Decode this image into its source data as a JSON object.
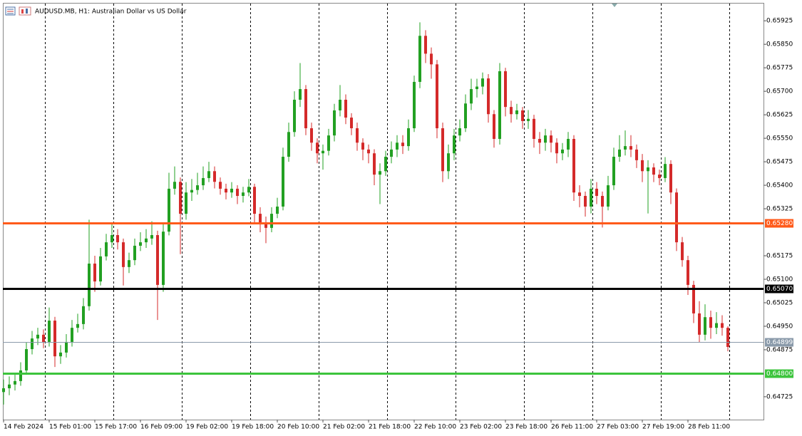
{
  "chart_data": {
    "type": "candlestick",
    "title": "AUDUSD.MB, H1:  Australian Dollar vs US Dollar",
    "up_color": "#22a022",
    "down_color": "#d42a2a",
    "ohlc": [
      [
        0.6474,
        0.6478,
        0.647,
        0.64752
      ],
      [
        0.64752,
        0.6479,
        0.6473,
        0.64764
      ],
      [
        0.64764,
        0.648,
        0.64745,
        0.64775
      ],
      [
        0.64775,
        0.64835,
        0.6476,
        0.64809
      ],
      [
        0.64809,
        0.649,
        0.64795,
        0.64877
      ],
      [
        0.64877,
        0.64935,
        0.6486,
        0.64911
      ],
      [
        0.64911,
        0.64945,
        0.6489,
        0.64923
      ],
      [
        0.64923,
        0.6494,
        0.6488,
        0.649
      ],
      [
        0.649,
        0.6501,
        0.64885,
        0.64968
      ],
      [
        0.64968,
        0.6498,
        0.6482,
        0.64854
      ],
      [
        0.64854,
        0.6489,
        0.6483,
        0.64866
      ],
      [
        0.64866,
        0.64925,
        0.6485,
        0.649
      ],
      [
        0.649,
        0.6497,
        0.64885,
        0.64945
      ],
      [
        0.64945,
        0.6499,
        0.6493,
        0.64957
      ],
      [
        0.64957,
        0.6504,
        0.6494,
        0.65014
      ],
      [
        0.65014,
        0.6529,
        0.65,
        0.6515
      ],
      [
        0.6515,
        0.65175,
        0.6506,
        0.65093
      ],
      [
        0.65093,
        0.652,
        0.6508,
        0.65173
      ],
      [
        0.65173,
        0.65245,
        0.6516,
        0.65218
      ],
      [
        0.65218,
        0.65275,
        0.652,
        0.65241
      ],
      [
        0.65241,
        0.6526,
        0.65195,
        0.65218
      ],
      [
        0.65218,
        0.6523,
        0.6508,
        0.65139
      ],
      [
        0.65139,
        0.65185,
        0.6512,
        0.65161
      ],
      [
        0.65161,
        0.6523,
        0.65145,
        0.65207
      ],
      [
        0.65207,
        0.6525,
        0.6519,
        0.65218
      ],
      [
        0.65218,
        0.6526,
        0.652,
        0.6523
      ],
      [
        0.6523,
        0.65285,
        0.6521,
        0.65241
      ],
      [
        0.65241,
        0.65255,
        0.6497,
        0.65082
      ],
      [
        0.65082,
        0.65275,
        0.6506,
        0.65252
      ],
      [
        0.65252,
        0.6544,
        0.6524,
        0.65389
      ],
      [
        0.65389,
        0.6546,
        0.6537,
        0.65411
      ],
      [
        0.65411,
        0.65425,
        0.6518,
        0.65309
      ],
      [
        0.65309,
        0.6541,
        0.6529,
        0.65377
      ],
      [
        0.65377,
        0.6542,
        0.6535,
        0.65385
      ],
      [
        0.65385,
        0.6544,
        0.6537,
        0.654
      ],
      [
        0.654,
        0.6546,
        0.65385,
        0.65423
      ],
      [
        0.65423,
        0.65475,
        0.6541,
        0.65445
      ],
      [
        0.65445,
        0.6546,
        0.6539,
        0.65411
      ],
      [
        0.65411,
        0.65425,
        0.6537,
        0.65389
      ],
      [
        0.65389,
        0.65405,
        0.65355,
        0.65377
      ],
      [
        0.65377,
        0.6541,
        0.6536,
        0.65389
      ],
      [
        0.65389,
        0.654,
        0.6534,
        0.65366
      ],
      [
        0.65366,
        0.65395,
        0.65345,
        0.65377
      ],
      [
        0.65377,
        0.6542,
        0.65365,
        0.65395
      ],
      [
        0.65395,
        0.65405,
        0.6528,
        0.65309
      ],
      [
        0.65309,
        0.6533,
        0.6525,
        0.65275
      ],
      [
        0.65275,
        0.653,
        0.65215,
        0.65264
      ],
      [
        0.65264,
        0.6533,
        0.6525,
        0.65309
      ],
      [
        0.65309,
        0.6536,
        0.65295,
        0.65332
      ],
      [
        0.65332,
        0.6552,
        0.6532,
        0.65491
      ],
      [
        0.65491,
        0.656,
        0.65475,
        0.6557
      ],
      [
        0.6557,
        0.657,
        0.65555,
        0.65673
      ],
      [
        0.65673,
        0.6579,
        0.6565,
        0.65707
      ],
      [
        0.65707,
        0.6572,
        0.6556,
        0.65582
      ],
      [
        0.65582,
        0.656,
        0.6551,
        0.65536
      ],
      [
        0.65536,
        0.6555,
        0.6547,
        0.65502
      ],
      [
        0.65502,
        0.6553,
        0.6545,
        0.6551
      ],
      [
        0.6551,
        0.6558,
        0.65495,
        0.65559
      ],
      [
        0.65559,
        0.6566,
        0.6554,
        0.65639
      ],
      [
        0.65639,
        0.6572,
        0.6562,
        0.65673
      ],
      [
        0.65673,
        0.6569,
        0.65595,
        0.65616
      ],
      [
        0.65616,
        0.6563,
        0.6556,
        0.65582
      ],
      [
        0.65582,
        0.656,
        0.6551,
        0.65536
      ],
      [
        0.65536,
        0.6555,
        0.6548,
        0.65514
      ],
      [
        0.65514,
        0.6553,
        0.6547,
        0.65502
      ],
      [
        0.65502,
        0.65515,
        0.654,
        0.65434
      ],
      [
        0.65434,
        0.6547,
        0.6534,
        0.65445
      ],
      [
        0.65445,
        0.6551,
        0.6543,
        0.65491
      ],
      [
        0.65491,
        0.6554,
        0.6547,
        0.65514
      ],
      [
        0.65514,
        0.6556,
        0.6549,
        0.65536
      ],
      [
        0.65536,
        0.6556,
        0.655,
        0.65525
      ],
      [
        0.65525,
        0.6561,
        0.6551,
        0.65582
      ],
      [
        0.65582,
        0.6575,
        0.6557,
        0.6573
      ],
      [
        0.6573,
        0.6592,
        0.6571,
        0.65877
      ],
      [
        0.65877,
        0.65895,
        0.6579,
        0.6582
      ],
      [
        0.6582,
        0.6584,
        0.6574,
        0.65786
      ],
      [
        0.65786,
        0.658,
        0.6555,
        0.65582
      ],
      [
        0.65582,
        0.656,
        0.6541,
        0.65445
      ],
      [
        0.65445,
        0.6553,
        0.6542,
        0.65502
      ],
      [
        0.65502,
        0.6558,
        0.6548,
        0.65559
      ],
      [
        0.65559,
        0.6561,
        0.6554,
        0.65582
      ],
      [
        0.65582,
        0.6569,
        0.6557,
        0.65661
      ],
      [
        0.65661,
        0.6574,
        0.6564,
        0.65707
      ],
      [
        0.65707,
        0.6574,
        0.6568,
        0.65715
      ],
      [
        0.65715,
        0.6576,
        0.6569,
        0.65741
      ],
      [
        0.65741,
        0.65755,
        0.656,
        0.65627
      ],
      [
        0.65627,
        0.6564,
        0.6552,
        0.65548
      ],
      [
        0.65548,
        0.6579,
        0.6553,
        0.65764
      ],
      [
        0.65764,
        0.65775,
        0.6562,
        0.6565
      ],
      [
        0.6565,
        0.6567,
        0.656,
        0.65627
      ],
      [
        0.65627,
        0.6566,
        0.6561,
        0.65639
      ],
      [
        0.65639,
        0.6565,
        0.6558,
        0.65605
      ],
      [
        0.65605,
        0.6564,
        0.6558,
        0.65612
      ],
      [
        0.65612,
        0.65625,
        0.6552,
        0.65548
      ],
      [
        0.65548,
        0.6557,
        0.655,
        0.65536
      ],
      [
        0.65536,
        0.6558,
        0.6551,
        0.65559
      ],
      [
        0.65559,
        0.65575,
        0.65505,
        0.65536
      ],
      [
        0.65536,
        0.6555,
        0.6547,
        0.65502
      ],
      [
        0.65502,
        0.65535,
        0.6548,
        0.65514
      ],
      [
        0.65514,
        0.6557,
        0.6549,
        0.65548
      ],
      [
        0.65548,
        0.6556,
        0.6535,
        0.65377
      ],
      [
        0.65377,
        0.654,
        0.6533,
        0.65366
      ],
      [
        0.65366,
        0.6538,
        0.653,
        0.65332
      ],
      [
        0.65332,
        0.6542,
        0.6531,
        0.65389
      ],
      [
        0.65389,
        0.6541,
        0.6534,
        0.65366
      ],
      [
        0.65366,
        0.6538,
        0.65265,
        0.65332
      ],
      [
        0.65332,
        0.6543,
        0.6532,
        0.654
      ],
      [
        0.654,
        0.6552,
        0.65385,
        0.65491
      ],
      [
        0.65491,
        0.6556,
        0.65475,
        0.65514
      ],
      [
        0.65514,
        0.65575,
        0.65495,
        0.65525
      ],
      [
        0.65525,
        0.6556,
        0.6549,
        0.65514
      ],
      [
        0.65514,
        0.6553,
        0.65455,
        0.6548
      ],
      [
        0.6548,
        0.655,
        0.6541,
        0.65445
      ],
      [
        0.65445,
        0.6548,
        0.6531,
        0.65457
      ],
      [
        0.65457,
        0.6547,
        0.6541,
        0.65434
      ],
      [
        0.65434,
        0.6545,
        0.654,
        0.65423
      ],
      [
        0.65423,
        0.6549,
        0.6541,
        0.65468
      ],
      [
        0.65468,
        0.6548,
        0.6534,
        0.65377
      ],
      [
        0.65377,
        0.6539,
        0.6519,
        0.65218
      ],
      [
        0.65218,
        0.65235,
        0.6514,
        0.65161
      ],
      [
        0.65161,
        0.65175,
        0.6505,
        0.65082
      ],
      [
        0.65082,
        0.65095,
        0.6496,
        0.64991
      ],
      [
        0.64991,
        0.6503,
        0.649,
        0.64923
      ],
      [
        0.64923,
        0.6502,
        0.64905,
        0.64979
      ],
      [
        0.64979,
        0.65,
        0.6491,
        0.64945
      ],
      [
        0.64945,
        0.64995,
        0.64925,
        0.6496
      ],
      [
        0.6496,
        0.64985,
        0.6492,
        0.64945
      ],
      [
        0.64945,
        0.6495,
        0.6487,
        0.64884
      ]
    ],
    "x_labels": [
      "14 Feb 2024",
      "15 Feb 01:00",
      "15 Feb 17:00",
      "16 Feb 09:00",
      "19 Feb 02:00",
      "19 Feb 18:00",
      "20 Feb 10:00",
      "21 Feb 02:00",
      "21 Feb 18:00",
      "22 Feb 10:00",
      "23 Feb 02:00",
      "23 Feb 18:00",
      "26 Feb 11:00",
      "27 Feb 03:00",
      "27 Feb 19:00",
      "28 Feb 11:00"
    ],
    "ylim": [
      0.64652,
      0.6598
    ],
    "yticks": [
      0.65925,
      {
        "value": 0.6585,
        "label": "0.65850"
      },
      0.65775,
      {
        "value": 0.657,
        "label": "0.65700"
      },
      0.65625,
      {
        "value": 0.6555,
        "label": "0.65550"
      },
      0.65475,
      {
        "value": 0.654,
        "label": "0.65400"
      },
      0.65325,
      0.65175,
      {
        "value": 0.651,
        "label": "0.65100"
      },
      0.65025,
      {
        "value": 0.6495,
        "label": "0.64950"
      },
      0.64875,
      0.64725
    ],
    "levels": [
      {
        "price": 0.6528,
        "label": "0.65280",
        "color": "#ff5a1a"
      },
      {
        "price": 0.6507,
        "label": "0.65070",
        "color": "#000000"
      },
      {
        "price": 0.648,
        "label": "0.64800",
        "color": "#3cc43c"
      },
      {
        "price": 0.64899,
        "label": "0.64899",
        "color": "#8a9aaa"
      }
    ]
  }
}
